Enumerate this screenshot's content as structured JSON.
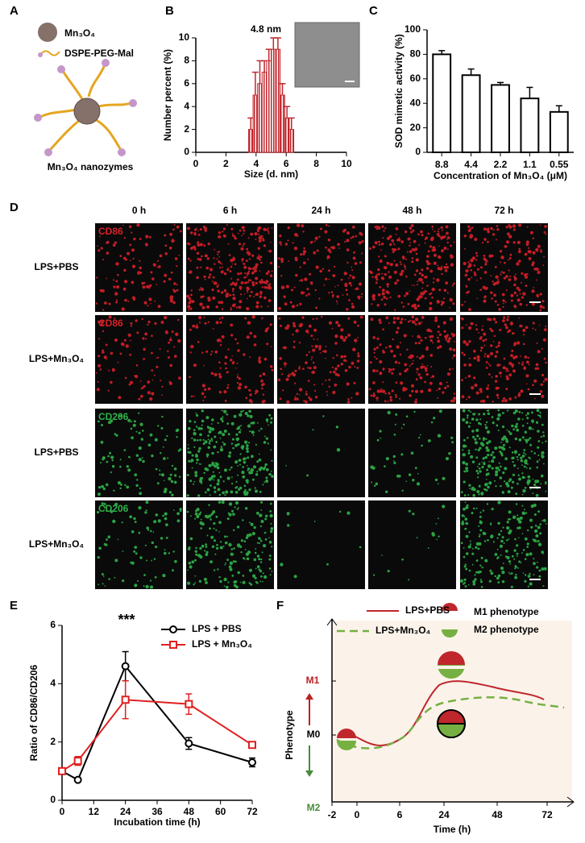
{
  "panel_a": {
    "label": "A",
    "core": "Mn₃O₄",
    "ligand": "DSPE-PEG-Mal",
    "caption": "Mn₃O₄ nanozymes"
  },
  "chart_data": [
    {
      "panel": "B",
      "type": "histogram",
      "bins": [
        3.5,
        3.8,
        4.1,
        4.4,
        4.7,
        5.0,
        5.3,
        5.6,
        5.9,
        6.2,
        6.5
      ],
      "values": [
        2,
        5,
        6,
        7,
        8,
        9,
        9,
        5,
        3,
        2
      ],
      "errors": [
        1,
        2,
        2,
        1,
        1,
        1,
        1,
        1,
        1,
        1
      ],
      "color": "#c0272d",
      "xlim": [
        0,
        10
      ],
      "xticks": [
        0,
        2,
        4,
        6,
        8,
        10
      ],
      "ylim": [
        0,
        10
      ],
      "yticks": [
        0,
        2,
        4,
        6,
        8,
        10
      ],
      "xlabel": "Size (d. nm)",
      "ylabel": "Number percent (%)",
      "annotation": "4.8 nm"
    },
    {
      "panel": "C",
      "type": "bar",
      "categories": [
        "8.8",
        "4.4",
        "2.2",
        "1.1",
        "0.55"
      ],
      "values": [
        80,
        63,
        55,
        44,
        33
      ],
      "errors": [
        3,
        5,
        2,
        9,
        5
      ],
      "color": "#ffffff",
      "ylim": [
        0,
        100
      ],
      "yticks": [
        0,
        20,
        40,
        60,
        80,
        100
      ],
      "xlabel": "Concentration of Mn₃O₄ (μM)",
      "ylabel": "SOD mimetic activity (%)"
    },
    {
      "panel": "E",
      "type": "line",
      "x": [
        0,
        6,
        24,
        48,
        72
      ],
      "series": [
        {
          "name": "LPS + PBS",
          "color": "#000000",
          "marker": "circle",
          "values": [
            1.0,
            0.7,
            4.6,
            1.95,
            1.3
          ],
          "errors": [
            0.1,
            0.05,
            0.5,
            0.2,
            0.15
          ]
        },
        {
          "name": "LPS + Mn₃O₄",
          "color": "#e02020",
          "marker": "square",
          "values": [
            1.0,
            1.35,
            3.45,
            3.3,
            1.9
          ],
          "errors": [
            0.1,
            0.15,
            0.65,
            0.35,
            0.1
          ]
        }
      ],
      "xlim": [
        0,
        72
      ],
      "xticks": [
        0,
        12,
        24,
        36,
        48,
        60,
        72
      ],
      "ylim": [
        0,
        6
      ],
      "yticks": [
        0,
        2,
        4,
        6
      ],
      "xlabel": "Incubation time (h)",
      "ylabel": "Ratio of CD86/CD206",
      "annotation": "***"
    }
  ],
  "panel_d": {
    "label": "D",
    "columns": [
      "0 h",
      "6 h",
      "24 h",
      "48 h",
      "72 h"
    ],
    "rows": [
      {
        "label": "LPS+PBS",
        "stain": "CD86"
      },
      {
        "label": "LPS+Mn₃O₄",
        "stain": "CD86"
      },
      {
        "label": "LPS+PBS",
        "stain": "CD206"
      },
      {
        "label": "LPS+Mn₃O₄",
        "stain": "CD206"
      }
    ]
  },
  "panel_f": {
    "label": "F",
    "legend": [
      "LPS+PBS",
      "LPS+Mn₃O₄"
    ],
    "phenotypes": [
      "M1 phenotype",
      "M2 phenotype"
    ],
    "levels": [
      "M1",
      "M0",
      "M2"
    ],
    "ylabel": "Phenotype",
    "xlabel": "Time (h)",
    "ticks": [
      "-2",
      "0",
      "6",
      "24",
      "48",
      "72"
    ]
  }
}
